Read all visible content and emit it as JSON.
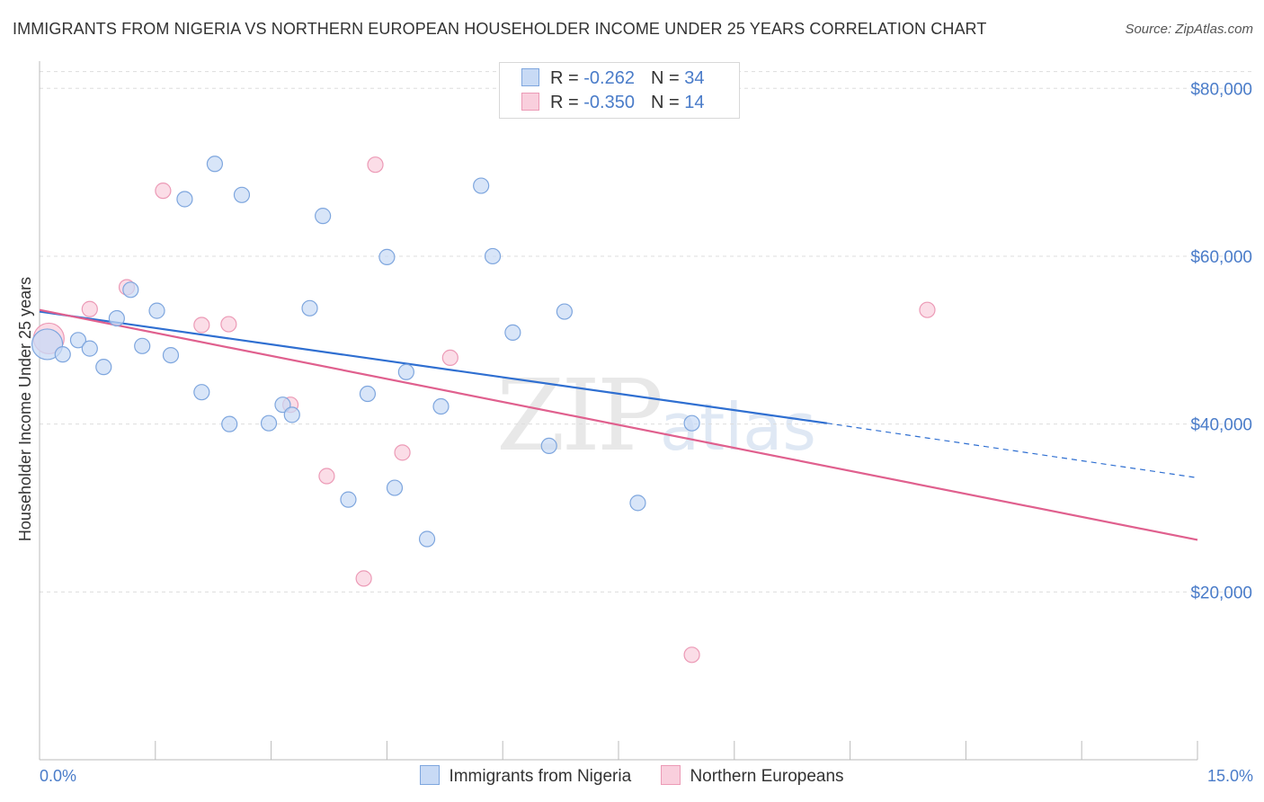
{
  "title": "IMMIGRANTS FROM NIGERIA VS NORTHERN EUROPEAN HOUSEHOLDER INCOME UNDER 25 YEARS CORRELATION CHART",
  "source": "Source: ZipAtlas.com",
  "legend": {
    "rows": [
      {
        "r_label": "R = ",
        "r_value": "-0.262",
        "n_label": "N = ",
        "n_value": "34"
      },
      {
        "r_label": "R = ",
        "r_value": "-0.350",
        "n_label": "N = ",
        "n_value": "14"
      }
    ]
  },
  "bottom_legend": [
    "Immigrants from Nigeria",
    "Northern Europeans"
  ],
  "watermark": {
    "zip": "ZIP",
    "atlas": "atlas"
  },
  "colors": {
    "series1_fill": "#c8daf5",
    "series1_stroke": "#7ea6de",
    "series1_line": "#2f6fd1",
    "series2_fill": "#f9cfdd",
    "series2_stroke": "#ec9ab6",
    "series2_line": "#e0608e",
    "tick_text": "#4a7cc9",
    "grid": "#dddddd"
  },
  "chart_data": {
    "type": "scatter",
    "title": "IMMIGRANTS FROM NIGERIA VS NORTHERN EUROPEAN HOUSEHOLDER INCOME UNDER 25 YEARS CORRELATION CHART",
    "xlabel": "",
    "ylabel": "Householder Income Under 25 years",
    "xlim": [
      0,
      15
    ],
    "ylim": [
      0,
      82000
    ],
    "x_tick_labels": [
      "0.0%",
      "15.0%"
    ],
    "y_ticks": [
      20000,
      40000,
      60000,
      80000
    ],
    "y_tick_labels": [
      "$20,000",
      "$40,000",
      "$60,000",
      "$80,000"
    ],
    "grid": true,
    "legend_position": "top-center",
    "series": [
      {
        "name": "Immigrants from Nigeria",
        "r": -0.262,
        "n": 34,
        "points": [
          {
            "x": 0.1,
            "y": 49500,
            "big": true
          },
          {
            "x": 0.3,
            "y": 48300
          },
          {
            "x": 0.5,
            "y": 50000
          },
          {
            "x": 0.65,
            "y": 49000
          },
          {
            "x": 0.83,
            "y": 46800
          },
          {
            "x": 1.0,
            "y": 52600
          },
          {
            "x": 1.18,
            "y": 56000
          },
          {
            "x": 1.33,
            "y": 49300
          },
          {
            "x": 1.52,
            "y": 53500
          },
          {
            "x": 1.7,
            "y": 48200
          },
          {
            "x": 1.88,
            "y": 66800
          },
          {
            "x": 2.1,
            "y": 43800
          },
          {
            "x": 2.27,
            "y": 71000
          },
          {
            "x": 2.46,
            "y": 40000
          },
          {
            "x": 2.62,
            "y": 67300
          },
          {
            "x": 2.97,
            "y": 40100
          },
          {
            "x": 3.15,
            "y": 42300
          },
          {
            "x": 3.27,
            "y": 41100
          },
          {
            "x": 3.5,
            "y": 53800
          },
          {
            "x": 3.67,
            "y": 64800
          },
          {
            "x": 4.0,
            "y": 31000
          },
          {
            "x": 4.25,
            "y": 43600
          },
          {
            "x": 4.5,
            "y": 59900
          },
          {
            "x": 4.6,
            "y": 32400
          },
          {
            "x": 4.75,
            "y": 46200
          },
          {
            "x": 5.02,
            "y": 26300
          },
          {
            "x": 5.2,
            "y": 42100
          },
          {
            "x": 5.72,
            "y": 68400
          },
          {
            "x": 5.87,
            "y": 60000
          },
          {
            "x": 6.13,
            "y": 50900
          },
          {
            "x": 6.6,
            "y": 37400
          },
          {
            "x": 6.8,
            "y": 53400
          },
          {
            "x": 7.75,
            "y": 30600
          },
          {
            "x": 8.45,
            "y": 40100
          }
        ],
        "trend": {
          "x0": 0.0,
          "y0": 53400,
          "x1": 10.2,
          "y1": 40100,
          "dash_to_x": 15.0,
          "dash_to_y": 33600
        }
      },
      {
        "name": "Northern Europeans",
        "r": -0.35,
        "n": 14,
        "points": [
          {
            "x": 0.12,
            "y": 50200,
            "big": true
          },
          {
            "x": 0.65,
            "y": 53700
          },
          {
            "x": 1.13,
            "y": 56300
          },
          {
            "x": 1.6,
            "y": 67800
          },
          {
            "x": 2.1,
            "y": 51800
          },
          {
            "x": 2.45,
            "y": 51900
          },
          {
            "x": 3.25,
            "y": 42300
          },
          {
            "x": 3.72,
            "y": 33800
          },
          {
            "x": 4.2,
            "y": 21600
          },
          {
            "x": 4.35,
            "y": 70900
          },
          {
            "x": 4.7,
            "y": 36600
          },
          {
            "x": 5.32,
            "y": 47900
          },
          {
            "x": 8.45,
            "y": 12500
          },
          {
            "x": 11.5,
            "y": 53600
          }
        ],
        "trend": {
          "x0": 0.0,
          "y0": 53600,
          "x1": 15.0,
          "y1": 26200
        }
      }
    ]
  }
}
